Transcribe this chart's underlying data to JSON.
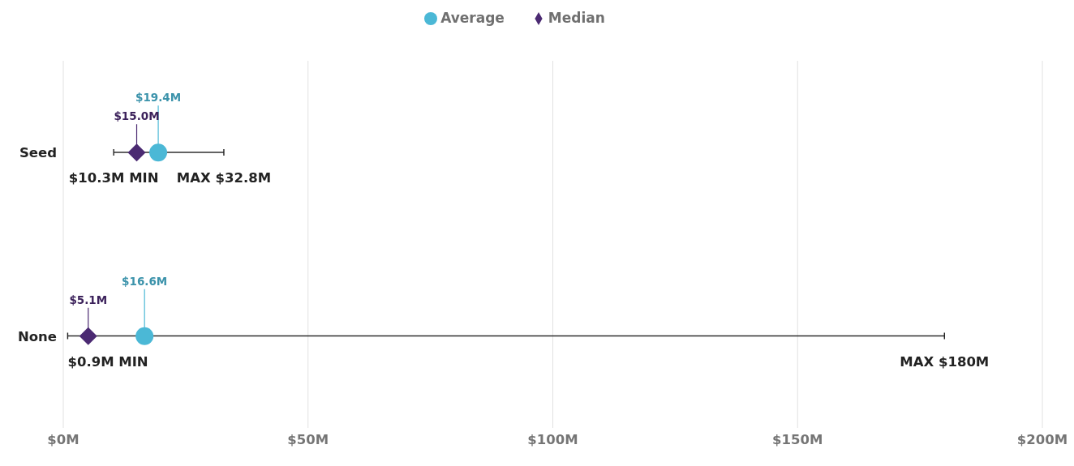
{
  "chart_data": {
    "type": "scatter",
    "orientation": "horizontal",
    "categories": [
      "Seed",
      "None"
    ],
    "series": [
      {
        "type": "bar",
        "color": "#222222",
        "base": [
          10.3,
          0.9
        ],
        "values": [
          22.5,
          179.1
        ]
      },
      {
        "name": "Average",
        "color": "#4bb8d6",
        "marker": "circle",
        "values": [
          19.4,
          16.6
        ],
        "value_labels": [
          "$19.4M",
          "$16.6M"
        ]
      },
      {
        "name": "Median",
        "color": "#4b2a72",
        "marker": "diamond",
        "values": [
          15.0,
          5.1
        ],
        "value_labels": [
          "$15.0M",
          "$5.1M"
        ]
      }
    ],
    "xlim": [
      0,
      200
    ],
    "xticks": [
      {
        "value": 0,
        "label": "$0M"
      },
      {
        "value": 50,
        "label": "$50M"
      },
      {
        "value": 100,
        "label": "$100M"
      },
      {
        "value": 150,
        "label": "$150M"
      },
      {
        "value": 200,
        "label": "$200M"
      }
    ],
    "annotations": [
      {
        "text": "$10.3M MIN",
        "x": 10.3,
        "y": "Seed"
      },
      {
        "text": "MAX $32.8M",
        "x": 32.8,
        "y": "Seed"
      },
      {
        "text": "$0.9M MIN",
        "x": 0.9,
        "y": "None"
      },
      {
        "text": "MAX $180M",
        "x": 180,
        "y": "None"
      }
    ],
    "grid": "x",
    "legend": "top"
  }
}
